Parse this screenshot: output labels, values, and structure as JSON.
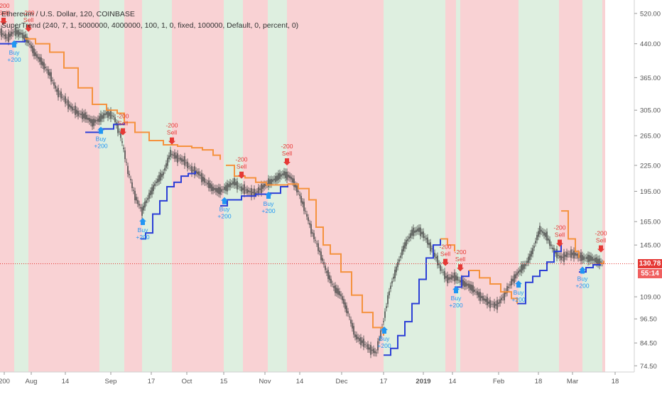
{
  "legend": {
    "title": "Ethereum / U.S. Dollar, 120, COINBASE",
    "indicator": "SuperTrend (240, 7, 1, 5000000, 4000000, 100, 1, 0, fixed, 100000, Default, 0, percent, 0)"
  },
  "price_tag": {
    "last": "130.78",
    "countdown": "55:14"
  },
  "colors": {
    "bg_red": "#f7c3c6",
    "bg_green": "#d3e9d6",
    "up_line": "#2c3fd6",
    "down_line": "#f5923e",
    "candle": "#4b4b4b",
    "buy": "#2196f3",
    "sell": "#e53935",
    "last_line": "#e53935"
  },
  "chart_data": {
    "type": "line",
    "title": "Ethereum / U.S. Dollar, 120, COINBASE",
    "ylabel": "",
    "xlabel": "",
    "y_scale": "log",
    "ylim": [
      72,
      560
    ],
    "y_ticks": [
      "520.00",
      "440.00",
      "365.00",
      "305.00",
      "265.00",
      "225.00",
      "195.00",
      "165.00",
      "145.00",
      "109.00",
      "96.50",
      "84.50",
      "74.50"
    ],
    "x_ticks": [
      "200",
      "Aug",
      "14",
      "Sep",
      "17",
      "Oct",
      "15",
      "Nov",
      "14",
      "Dec",
      "17",
      "2019",
      "14",
      "Feb",
      "18",
      "Mar",
      "18"
    ],
    "x": [
      0,
      10,
      20,
      30,
      40,
      50,
      60,
      70,
      80,
      90,
      100,
      110,
      120,
      130,
      140,
      150,
      160,
      170,
      180,
      190,
      200,
      210,
      220,
      230,
      240,
      250,
      260,
      270,
      280,
      290,
      300,
      310,
      320,
      330,
      340,
      350,
      360,
      370,
      380,
      390,
      400,
      410,
      420,
      430,
      440,
      450,
      460,
      470,
      480,
      490,
      500,
      510,
      520,
      530,
      540,
      550,
      560,
      570,
      580,
      590,
      600,
      610,
      620,
      630,
      640,
      650,
      660,
      670,
      680,
      690,
      700,
      710,
      720,
      730,
      740,
      750,
      760,
      770,
      780,
      790,
      800,
      810,
      820,
      830,
      840,
      850
    ],
    "price": [
      470,
      455,
      470,
      465,
      445,
      415,
      395,
      372,
      340,
      325,
      310,
      300,
      295,
      285,
      290,
      300,
      295,
      265,
      220,
      190,
      175,
      190,
      205,
      215,
      240,
      235,
      230,
      220,
      215,
      205,
      198,
      195,
      200,
      205,
      198,
      195,
      193,
      200,
      205,
      210,
      215,
      210,
      195,
      175,
      155,
      140,
      125,
      115,
      110,
      100,
      88,
      85,
      82,
      80,
      95,
      115,
      130,
      145,
      155,
      158,
      150,
      140,
      128,
      120,
      122,
      118,
      116,
      112,
      108,
      105,
      104,
      110,
      118,
      125,
      130,
      140,
      158,
      152,
      140,
      135,
      138,
      138,
      135,
      135,
      133,
      131
    ],
    "series": [
      {
        "name": "SuperTrend Up",
        "segments": [
          [
            [
              0,
              440
            ],
            [
              20,
              445
            ],
            [
              35,
              452
            ]
          ],
          [
            [
              120,
              270
            ],
            [
              140,
              275
            ],
            [
              160,
              282
            ],
            [
              175,
              285
            ]
          ],
          [
            [
              198,
              150
            ],
            [
              205,
              155
            ],
            [
              215,
              172
            ],
            [
              225,
              185
            ],
            [
              235,
              200
            ],
            [
              245,
              205
            ],
            [
              255,
              212
            ],
            [
              265,
              215
            ],
            [
              275,
              218
            ]
          ],
          [
            [
              310,
              180
            ],
            [
              320,
              186
            ],
            [
              340,
              190
            ],
            [
              360,
              192
            ],
            [
              380,
              193
            ],
            [
              395,
              200
            ],
            [
              405,
              203
            ]
          ],
          [
            [
              540,
              79
            ],
            [
              550,
              82
            ],
            [
              560,
              88
            ],
            [
              570,
              95
            ],
            [
              580,
              105
            ],
            [
              590,
              120
            ],
            [
              600,
              135
            ],
            [
              610,
              145
            ],
            [
              620,
              150
            ]
          ],
          [
            [
              640,
              115
            ],
            [
              650,
              122
            ],
            [
              660,
              126
            ]
          ],
          [
            [
              728,
              105
            ],
            [
              740,
              118
            ],
            [
              750,
              122
            ],
            [
              760,
              126
            ],
            [
              770,
              132
            ],
            [
              780,
              140
            ],
            [
              790,
              147
            ]
          ],
          [
            [
              815,
              125
            ],
            [
              825,
              128
            ],
            [
              835,
              130
            ],
            [
              845,
              131
            ]
          ]
        ]
      },
      {
        "name": "SuperTrend Down",
        "segments": [
          [
            [
              35,
              452
            ],
            [
              50,
              440
            ],
            [
              70,
              420
            ],
            [
              90,
              385
            ],
            [
              110,
              345
            ],
            [
              130,
              315
            ],
            [
              150,
              305
            ],
            [
              165,
              300
            ],
            [
              175,
              285
            ]
          ],
          [
            [
              175,
              285
            ],
            [
              190,
              270
            ],
            [
              210,
              258
            ],
            [
              230,
              252
            ],
            [
              250,
              250
            ],
            [
              270,
              248
            ],
            [
              285,
              245
            ],
            [
              300,
              238
            ],
            [
              310,
              232
            ]
          ],
          [
            [
              318,
              225
            ],
            [
              330,
              212
            ],
            [
              345,
              210
            ],
            [
              360,
              205
            ],
            [
              375,
              202
            ],
            [
              405,
              203
            ]
          ],
          [
            [
              405,
              203
            ],
            [
              420,
              198
            ],
            [
              435,
              186
            ],
            [
              445,
              160
            ],
            [
              455,
              145
            ],
            [
              465,
              138
            ],
            [
              480,
              125
            ],
            [
              495,
              110
            ],
            [
              510,
              100
            ],
            [
              525,
              92
            ],
            [
              540,
              88
            ]
          ],
          [
            [
              620,
              150
            ],
            [
              630,
              145
            ],
            [
              640,
              140
            ]
          ],
          [
            [
              660,
              126
            ],
            [
              675,
              121
            ],
            [
              690,
              117
            ],
            [
              705,
              112
            ],
            [
              720,
              108
            ],
            [
              728,
              105
            ]
          ],
          [
            [
              790,
              175
            ],
            [
              800,
              150
            ],
            [
              810,
              140
            ],
            [
              815,
              135
            ]
          ],
          [
            [
              845,
              131
            ],
            [
              850,
              133
            ]
          ]
        ]
      }
    ],
    "signals": [
      {
        "type": "sell",
        "x": 5,
        "label": "Sell",
        "amount": "-200"
      },
      {
        "type": "buy",
        "x": 20,
        "label": "Buy",
        "amount": "+200"
      },
      {
        "type": "sell",
        "x": 40,
        "label": "Sell",
        "amount": "-200"
      },
      {
        "type": "buy",
        "x": 142,
        "label": "Buy",
        "amount": "+200"
      },
      {
        "type": "sell",
        "x": 173,
        "label": "Sell",
        "amount": "-200"
      },
      {
        "type": "buy",
        "x": 201,
        "label": "Buy",
        "amount": "+200"
      },
      {
        "type": "sell",
        "x": 242,
        "label": "Sell",
        "amount": "-200"
      },
      {
        "type": "buy",
        "x": 316,
        "label": "Buy",
        "amount": "+200"
      },
      {
        "type": "sell",
        "x": 340,
        "label": "Sell",
        "amount": "-200"
      },
      {
        "type": "buy",
        "x": 378,
        "label": "Buy",
        "amount": "+200"
      },
      {
        "type": "sell",
        "x": 404,
        "label": "Sell",
        "amount": "-200"
      },
      {
        "type": "buy",
        "x": 541,
        "label": "Buy",
        "amount": "+200"
      },
      {
        "type": "sell",
        "x": 627,
        "label": "Sell",
        "amount": "-200"
      },
      {
        "type": "buy",
        "x": 642,
        "label": "Buy",
        "amount": "+200"
      },
      {
        "type": "sell",
        "x": 648,
        "label": "Sell",
        "amount": "-200"
      },
      {
        "type": "buy",
        "x": 730,
        "label": "Buy",
        "amount": "+200"
      },
      {
        "type": "sell",
        "x": 788,
        "label": "Sell",
        "amount": "-200"
      },
      {
        "type": "buy",
        "x": 820,
        "label": "Buy",
        "amount": "+200"
      },
      {
        "type": "sell",
        "x": 846,
        "label": "Sell",
        "amount": "-200"
      }
    ],
    "bands": [
      {
        "from": 0,
        "to": 20,
        "state": "red"
      },
      {
        "from": 20,
        "to": 40,
        "state": "green"
      },
      {
        "from": 40,
        "to": 140,
        "state": "red"
      },
      {
        "from": 140,
        "to": 175,
        "state": "green"
      },
      {
        "from": 175,
        "to": 200,
        "state": "red"
      },
      {
        "from": 200,
        "to": 242,
        "state": "green"
      },
      {
        "from": 242,
        "to": 315,
        "state": "red"
      },
      {
        "from": 315,
        "to": 342,
        "state": "green"
      },
      {
        "from": 342,
        "to": 377,
        "state": "red"
      },
      {
        "from": 377,
        "to": 404,
        "state": "green"
      },
      {
        "from": 404,
        "to": 540,
        "state": "red"
      },
      {
        "from": 540,
        "to": 627,
        "state": "green"
      },
      {
        "from": 627,
        "to": 642,
        "state": "red"
      },
      {
        "from": 642,
        "to": 648,
        "state": "green"
      },
      {
        "from": 648,
        "to": 730,
        "state": "red"
      },
      {
        "from": 730,
        "to": 787,
        "state": "green"
      },
      {
        "from": 787,
        "to": 820,
        "state": "red"
      },
      {
        "from": 820,
        "to": 848,
        "state": "green"
      },
      {
        "from": 848,
        "to": 852,
        "state": "red"
      }
    ],
    "last_value": 130.78,
    "grid": false,
    "legend": "top-left"
  }
}
